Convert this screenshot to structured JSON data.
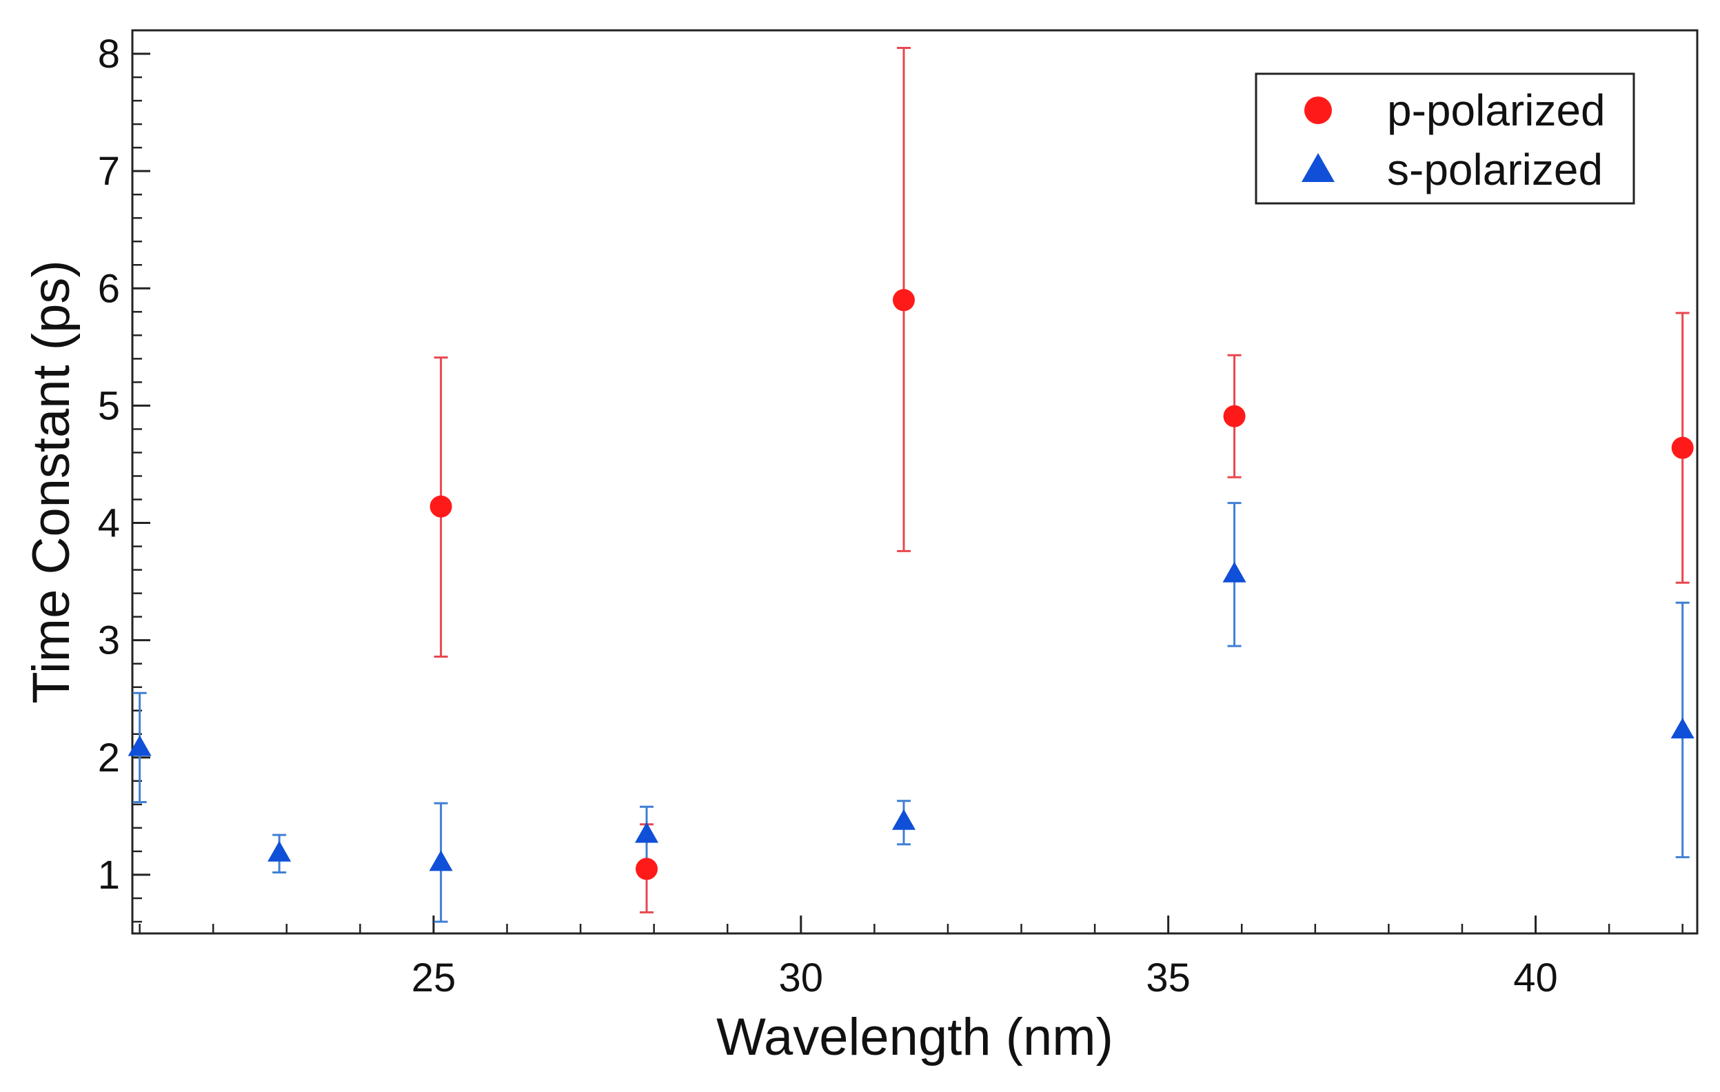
{
  "chart_data": {
    "type": "scatter",
    "title": "",
    "xlabel": "Wavelength (nm)",
    "ylabel": "Time Constant (ps)",
    "xlim": [
      20.9,
      42.2
    ],
    "ylim": [
      0.5,
      8.2
    ],
    "xticks": [
      25,
      30,
      35,
      40
    ],
    "xtick_labels": [
      "25",
      "30",
      "35",
      "40"
    ],
    "x_minor_ticks": [
      21,
      22,
      23,
      24,
      26,
      27,
      28,
      29,
      31,
      32,
      33,
      34,
      36,
      37,
      38,
      39,
      41,
      42
    ],
    "yticks": [
      1,
      2,
      3,
      4,
      5,
      6,
      7,
      8
    ],
    "ytick_labels": [
      "1",
      "2",
      "3",
      "4",
      "5",
      "6",
      "7",
      "8"
    ],
    "y_minor_ticks": [
      0.6,
      0.8,
      1.2,
      1.4,
      1.6,
      1.8,
      2.2,
      2.4,
      2.6,
      2.8,
      3.2,
      3.4,
      3.6,
      3.8,
      4.2,
      4.4,
      4.6,
      4.8,
      5.2,
      5.4,
      5.6,
      5.8,
      6.2,
      6.4,
      6.6,
      6.8,
      7.2,
      7.4,
      7.6,
      7.8,
      8.2
    ],
    "grid": false,
    "legend_position": "top-right",
    "series": [
      {
        "name": "p-polarized",
        "marker": "circle",
        "color": "#ff1a1a",
        "errorbar_color": "#e8474f",
        "points": [
          {
            "x": 25.1,
            "y": 4.14,
            "ylow": 2.86,
            "yhigh": 5.41
          },
          {
            "x": 27.9,
            "y": 1.05,
            "ylow": 0.68,
            "yhigh": 1.43
          },
          {
            "x": 31.4,
            "y": 5.9,
            "ylow": 3.76,
            "yhigh": 8.05
          },
          {
            "x": 35.9,
            "y": 4.91,
            "ylow": 4.39,
            "yhigh": 5.43
          },
          {
            "x": 42.0,
            "y": 4.64,
            "ylow": 3.49,
            "yhigh": 5.79
          }
        ]
      },
      {
        "name": "s-polarized",
        "marker": "triangle",
        "color": "#1050d8",
        "errorbar_color": "#3f7fd3",
        "points": [
          {
            "x": 21.0,
            "y": 2.08,
            "ylow": 1.62,
            "yhigh": 2.55
          },
          {
            "x": 22.9,
            "y": 1.18,
            "ylow": 1.02,
            "yhigh": 1.34
          },
          {
            "x": 25.1,
            "y": 1.1,
            "ylow": 0.6,
            "yhigh": 1.61
          },
          {
            "x": 27.9,
            "y": 1.34,
            "ylow": 1.1,
            "yhigh": 1.58
          },
          {
            "x": 31.4,
            "y": 1.45,
            "ylow": 1.26,
            "yhigh": 1.63
          },
          {
            "x": 35.9,
            "y": 3.56,
            "ylow": 2.95,
            "yhigh": 4.17
          },
          {
            "x": 42.0,
            "y": 2.23,
            "ylow": 1.15,
            "yhigh": 3.32
          }
        ]
      }
    ]
  }
}
